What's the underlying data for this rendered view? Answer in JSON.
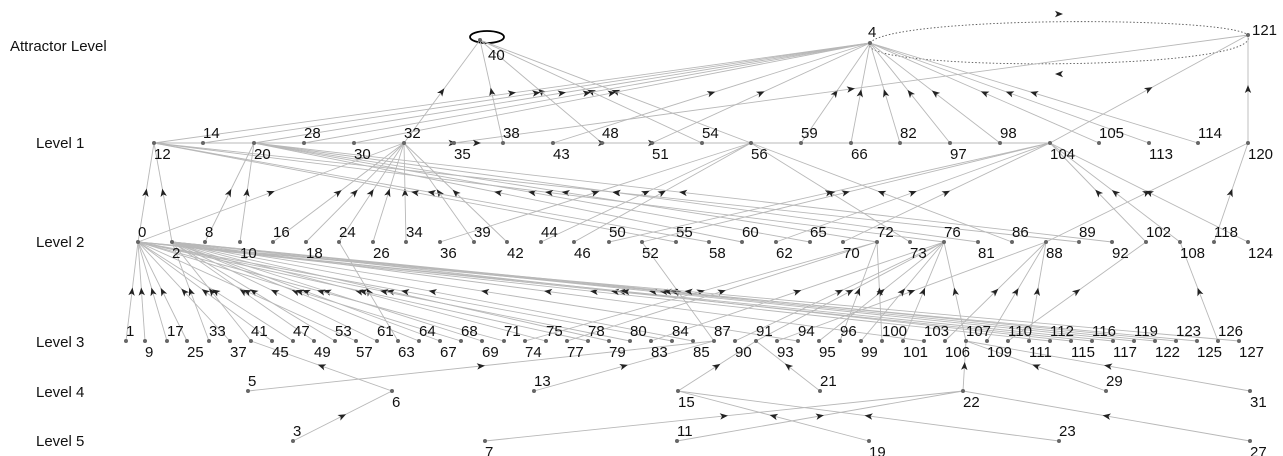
{
  "levels": [
    "Attractor Level",
    "Level 1",
    "Level 2",
    "Level 3",
    "Level 4",
    "Level 5"
  ],
  "nodes": [
    {
      "id": "40",
      "level": 0
    },
    {
      "id": "4",
      "level": 0
    },
    {
      "id": "121",
      "level": 0
    },
    {
      "id": "12",
      "level": 1
    },
    {
      "id": "14",
      "level": 1
    },
    {
      "id": "20",
      "level": 1
    },
    {
      "id": "28",
      "level": 1
    },
    {
      "id": "30",
      "level": 1
    },
    {
      "id": "32",
      "level": 1
    },
    {
      "id": "35",
      "level": 1
    },
    {
      "id": "38",
      "level": 1
    },
    {
      "id": "43",
      "level": 1
    },
    {
      "id": "48",
      "level": 1
    },
    {
      "id": "51",
      "level": 1
    },
    {
      "id": "54",
      "level": 1
    },
    {
      "id": "56",
      "level": 1
    },
    {
      "id": "59",
      "level": 1
    },
    {
      "id": "66",
      "level": 1
    },
    {
      "id": "82",
      "level": 1
    },
    {
      "id": "97",
      "level": 1
    },
    {
      "id": "98",
      "level": 1
    },
    {
      "id": "104",
      "level": 1
    },
    {
      "id": "105",
      "level": 1
    },
    {
      "id": "113",
      "level": 1
    },
    {
      "id": "114",
      "level": 1
    },
    {
      "id": "120",
      "level": 1
    },
    {
      "id": "0",
      "level": 2
    },
    {
      "id": "2",
      "level": 2
    },
    {
      "id": "8",
      "level": 2
    },
    {
      "id": "10",
      "level": 2
    },
    {
      "id": "16",
      "level": 2
    },
    {
      "id": "18",
      "level": 2
    },
    {
      "id": "24",
      "level": 2
    },
    {
      "id": "26",
      "level": 2
    },
    {
      "id": "34",
      "level": 2
    },
    {
      "id": "36",
      "level": 2
    },
    {
      "id": "39",
      "level": 2
    },
    {
      "id": "42",
      "level": 2
    },
    {
      "id": "44",
      "level": 2
    },
    {
      "id": "46",
      "level": 2
    },
    {
      "id": "50",
      "level": 2
    },
    {
      "id": "52",
      "level": 2
    },
    {
      "id": "55",
      "level": 2
    },
    {
      "id": "58",
      "level": 2
    },
    {
      "id": "60",
      "level": 2
    },
    {
      "id": "62",
      "level": 2
    },
    {
      "id": "65",
      "level": 2
    },
    {
      "id": "70",
      "level": 2
    },
    {
      "id": "72",
      "level": 2
    },
    {
      "id": "73",
      "level": 2
    },
    {
      "id": "76",
      "level": 2
    },
    {
      "id": "81",
      "level": 2
    },
    {
      "id": "86",
      "level": 2
    },
    {
      "id": "88",
      "level": 2
    },
    {
      "id": "89",
      "level": 2
    },
    {
      "id": "92",
      "level": 2
    },
    {
      "id": "102",
      "level": 2
    },
    {
      "id": "108",
      "level": 2
    },
    {
      "id": "118",
      "level": 2
    },
    {
      "id": "124",
      "level": 2
    },
    {
      "id": "1",
      "level": 3
    },
    {
      "id": "9",
      "level": 3
    },
    {
      "id": "17",
      "level": 3
    },
    {
      "id": "25",
      "level": 3
    },
    {
      "id": "33",
      "level": 3
    },
    {
      "id": "37",
      "level": 3
    },
    {
      "id": "41",
      "level": 3
    },
    {
      "id": "45",
      "level": 3
    },
    {
      "id": "47",
      "level": 3
    },
    {
      "id": "49",
      "level": 3
    },
    {
      "id": "53",
      "level": 3
    },
    {
      "id": "57",
      "level": 3
    },
    {
      "id": "61",
      "level": 3
    },
    {
      "id": "63",
      "level": 3
    },
    {
      "id": "64",
      "level": 3
    },
    {
      "id": "67",
      "level": 3
    },
    {
      "id": "68",
      "level": 3
    },
    {
      "id": "69",
      "level": 3
    },
    {
      "id": "71",
      "level": 3
    },
    {
      "id": "74",
      "level": 3
    },
    {
      "id": "75",
      "level": 3
    },
    {
      "id": "77",
      "level": 3
    },
    {
      "id": "78",
      "level": 3
    },
    {
      "id": "79",
      "level": 3
    },
    {
      "id": "80",
      "level": 3
    },
    {
      "id": "83",
      "level": 3
    },
    {
      "id": "84",
      "level": 3
    },
    {
      "id": "85",
      "level": 3
    },
    {
      "id": "87",
      "level": 3
    },
    {
      "id": "90",
      "level": 3
    },
    {
      "id": "91",
      "level": 3
    },
    {
      "id": "93",
      "level": 3
    },
    {
      "id": "94",
      "level": 3
    },
    {
      "id": "95",
      "level": 3
    },
    {
      "id": "96",
      "level": 3
    },
    {
      "id": "99",
      "level": 3
    },
    {
      "id": "100",
      "level": 3
    },
    {
      "id": "101",
      "level": 3
    },
    {
      "id": "103",
      "level": 3
    },
    {
      "id": "106",
      "level": 3
    },
    {
      "id": "107",
      "level": 3
    },
    {
      "id": "109",
      "level": 3
    },
    {
      "id": "110",
      "level": 3
    },
    {
      "id": "111",
      "level": 3
    },
    {
      "id": "112",
      "level": 3
    },
    {
      "id": "115",
      "level": 3
    },
    {
      "id": "116",
      "level": 3
    },
    {
      "id": "117",
      "level": 3
    },
    {
      "id": "119",
      "level": 3
    },
    {
      "id": "122",
      "level": 3
    },
    {
      "id": "123",
      "level": 3
    },
    {
      "id": "125",
      "level": 3
    },
    {
      "id": "126",
      "level": 3
    },
    {
      "id": "127",
      "level": 3
    },
    {
      "id": "5",
      "level": 4
    },
    {
      "id": "6",
      "level": 4
    },
    {
      "id": "13",
      "level": 4
    },
    {
      "id": "15",
      "level": 4
    },
    {
      "id": "21",
      "level": 4
    },
    {
      "id": "22",
      "level": 4
    },
    {
      "id": "29",
      "level": 4
    },
    {
      "id": "31",
      "level": 4
    },
    {
      "id": "3",
      "level": 5
    },
    {
      "id": "7",
      "level": 5
    },
    {
      "id": "11",
      "level": 5
    },
    {
      "id": "19",
      "level": 5
    },
    {
      "id": "23",
      "level": 5
    },
    {
      "id": "27",
      "level": 5
    }
  ],
  "edges": [
    [
      "4",
      "121"
    ],
    [
      "121",
      "4"
    ],
    [
      "40",
      "40"
    ],
    [
      "32",
      "40"
    ],
    [
      "38",
      "40"
    ],
    [
      "48",
      "40"
    ],
    [
      "54",
      "40"
    ],
    [
      "56",
      "40"
    ],
    [
      "12",
      "4"
    ],
    [
      "14",
      "4"
    ],
    [
      "20",
      "4"
    ],
    [
      "28",
      "4"
    ],
    [
      "30",
      "4"
    ],
    [
      "43",
      "4"
    ],
    [
      "51",
      "4"
    ],
    [
      "59",
      "4"
    ],
    [
      "66",
      "4"
    ],
    [
      "82",
      "4"
    ],
    [
      "97",
      "4"
    ],
    [
      "98",
      "4"
    ],
    [
      "105",
      "4"
    ],
    [
      "113",
      "4"
    ],
    [
      "114",
      "4"
    ],
    [
      "35",
      "121"
    ],
    [
      "120",
      "121"
    ],
    [
      "104",
      "121"
    ],
    [
      "12",
      "104"
    ],
    [
      "12",
      "56"
    ],
    [
      "20",
      "104"
    ],
    [
      "14",
      "56"
    ],
    [
      "0",
      "12"
    ],
    [
      "0",
      "32"
    ],
    [
      "2",
      "12"
    ],
    [
      "8",
      "20"
    ],
    [
      "10",
      "20"
    ],
    [
      "16",
      "32"
    ],
    [
      "18",
      "32"
    ],
    [
      "24",
      "32"
    ],
    [
      "26",
      "32"
    ],
    [
      "34",
      "32"
    ],
    [
      "36",
      "56"
    ],
    [
      "39",
      "32"
    ],
    [
      "42",
      "32"
    ],
    [
      "44",
      "56"
    ],
    [
      "46",
      "56"
    ],
    [
      "50",
      "104"
    ],
    [
      "52",
      "104"
    ],
    [
      "55",
      "12"
    ],
    [
      "58",
      "12"
    ],
    [
      "60",
      "20"
    ],
    [
      "62",
      "104"
    ],
    [
      "65",
      "20"
    ],
    [
      "70",
      "104"
    ],
    [
      "72",
      "20"
    ],
    [
      "73",
      "56"
    ],
    [
      "76",
      "12"
    ],
    [
      "81",
      "20"
    ],
    [
      "86",
      "56"
    ],
    [
      "88",
      "120"
    ],
    [
      "89",
      "12"
    ],
    [
      "92",
      "20"
    ],
    [
      "102",
      "104"
    ],
    [
      "108",
      "104"
    ],
    [
      "118",
      "120"
    ],
    [
      "124",
      "104"
    ],
    [
      "1",
      "0"
    ],
    [
      "9",
      "0"
    ],
    [
      "17",
      "0"
    ],
    [
      "25",
      "0"
    ],
    [
      "33",
      "2"
    ],
    [
      "37",
      "0"
    ],
    [
      "41",
      "2"
    ],
    [
      "45",
      "0"
    ],
    [
      "47",
      "0"
    ],
    [
      "49",
      "2"
    ],
    [
      "53",
      "2"
    ],
    [
      "57",
      "0"
    ],
    [
      "61",
      "2"
    ],
    [
      "63",
      "24"
    ],
    [
      "64",
      "2"
    ],
    [
      "67",
      "2"
    ],
    [
      "68",
      "0"
    ],
    [
      "69",
      "2"
    ],
    [
      "71",
      "0"
    ],
    [
      "74",
      "72"
    ],
    [
      "75",
      "2"
    ],
    [
      "77",
      "72"
    ],
    [
      "78",
      "0"
    ],
    [
      "79",
      "2"
    ],
    [
      "80",
      "0"
    ],
    [
      "83",
      "76"
    ],
    [
      "84",
      "0"
    ],
    [
      "85",
      "2"
    ],
    [
      "87",
      "52"
    ],
    [
      "90",
      "76"
    ],
    [
      "91",
      "76"
    ],
    [
      "93",
      "88"
    ],
    [
      "94",
      "2"
    ],
    [
      "95",
      "76"
    ],
    [
      "96",
      "72"
    ],
    [
      "99",
      "76"
    ],
    [
      "100",
      "72"
    ],
    [
      "101",
      "76"
    ],
    [
      "103",
      "2"
    ],
    [
      "106",
      "88"
    ],
    [
      "107",
      "76"
    ],
    [
      "109",
      "88"
    ],
    [
      "110",
      "102"
    ],
    [
      "111",
      "88"
    ],
    [
      "112",
      "0"
    ],
    [
      "115",
      "2"
    ],
    [
      "116",
      "0"
    ],
    [
      "117",
      "0"
    ],
    [
      "119",
      "2"
    ],
    [
      "122",
      "2"
    ],
    [
      "123",
      "2"
    ],
    [
      "125",
      "0"
    ],
    [
      "126",
      "108"
    ],
    [
      "127",
      "0"
    ],
    [
      "5",
      "87"
    ],
    [
      "6",
      "41"
    ],
    [
      "13",
      "87"
    ],
    [
      "15",
      "91"
    ],
    [
      "21",
      "91"
    ],
    [
      "22",
      "107"
    ],
    [
      "29",
      "107"
    ],
    [
      "31",
      "107"
    ],
    [
      "3",
      "6"
    ],
    [
      "7",
      "22"
    ],
    [
      "11",
      "22"
    ],
    [
      "19",
      "15"
    ],
    [
      "23",
      "15"
    ],
    [
      "27",
      "22"
    ]
  ]
}
